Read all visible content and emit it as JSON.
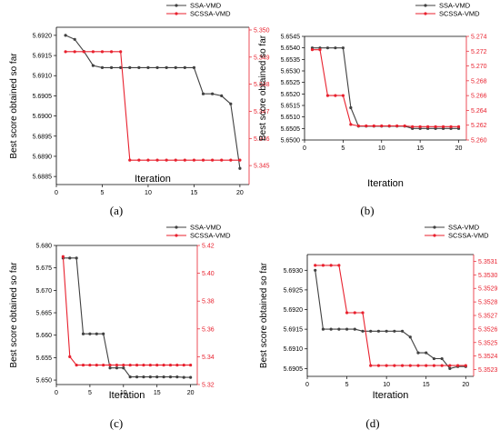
{
  "colors": {
    "ssa": "#404040",
    "scssa": "#e8212e",
    "axis": "#000000"
  },
  "legend": {
    "position": "top-right, above plot area"
  },
  "chart_data": [
    {
      "type": "line",
      "panel_label": "(a)",
      "xlabel": "Iteration",
      "ylabel": "Best score obtained so far",
      "xlim": [
        0,
        21
      ],
      "xticks": [
        0,
        5,
        10,
        15,
        20
      ],
      "ylim_left": [
        5.6883,
        5.6922
      ],
      "yticks_left": [
        5.6885,
        5.689,
        5.6895,
        5.69,
        5.6905,
        5.691,
        5.6915,
        5.692
      ],
      "yticklabels_left": [
        "5.6885",
        "5.6890",
        "5.6895",
        "5.6900",
        "5.6905",
        "5.6910",
        "5.6915",
        "5.6920"
      ],
      "ylim_right": [
        5.3443,
        5.3501
      ],
      "yticks_right": [
        5.345,
        5.346,
        5.347,
        5.348,
        5.349,
        5.35
      ],
      "yticklabels_right": [
        "5.345",
        "5.346",
        "5.347",
        "5.348",
        "5.349",
        "5.350"
      ],
      "series": [
        {
          "name": "SSA-VMD",
          "axis": "left",
          "x": [
            1,
            2,
            3,
            4,
            5,
            6,
            7,
            8,
            9,
            10,
            11,
            12,
            13,
            14,
            15,
            16,
            17,
            18,
            19,
            20
          ],
          "values": [
            5.692,
            5.6919,
            5.6916,
            5.69125,
            5.6912,
            5.6912,
            5.6912,
            5.6912,
            5.6912,
            5.6912,
            5.6912,
            5.6912,
            5.6912,
            5.6912,
            5.6912,
            5.69055,
            5.69055,
            5.6905,
            5.6903,
            5.6887
          ]
        },
        {
          "name": "SCSSA-VMD",
          "axis": "right",
          "x": [
            1,
            2,
            3,
            4,
            5,
            6,
            7,
            8,
            9,
            10,
            11,
            12,
            13,
            14,
            15,
            16,
            17,
            18,
            19,
            20
          ],
          "values": [
            5.3492,
            5.3492,
            5.3492,
            5.3492,
            5.3492,
            5.3492,
            5.3492,
            5.3452,
            5.3452,
            5.3452,
            5.3452,
            5.3452,
            5.3452,
            5.3452,
            5.3452,
            5.3452,
            5.3452,
            5.3452,
            5.3452,
            5.3452
          ]
        }
      ]
    },
    {
      "type": "line",
      "panel_label": "(b)",
      "xlabel": "Iteration",
      "ylabel": "Best score obtained so far",
      "xlim": [
        0,
        21
      ],
      "xticks": [
        0,
        5,
        10,
        15,
        20
      ],
      "ylim_left": [
        5.65,
        5.6545
      ],
      "yticks_left": [
        5.65,
        5.6505,
        5.651,
        5.6515,
        5.652,
        5.6525,
        5.653,
        5.6535,
        5.654,
        5.6545
      ],
      "yticklabels_left": [
        "5.6500",
        "5.6505",
        "5.6510",
        "5.6515",
        "5.6520",
        "5.6525",
        "5.6530",
        "5.6535",
        "5.6540",
        "5.6545"
      ],
      "ylim_right": [
        5.26,
        5.274
      ],
      "yticks_right": [
        5.26,
        5.262,
        5.264,
        5.266,
        5.268,
        5.27,
        5.272,
        5.274
      ],
      "yticklabels_right": [
        "5.260",
        "5.262",
        "5.264",
        "5.266",
        "5.268",
        "5.270",
        "5.272",
        "5.274"
      ],
      "series": [
        {
          "name": "SSA-VMD",
          "axis": "left",
          "x": [
            1,
            2,
            3,
            4,
            5,
            6,
            7,
            8,
            9,
            10,
            11,
            12,
            13,
            14,
            15,
            16,
            17,
            18,
            19,
            20
          ],
          "values": [
            5.654,
            5.654,
            5.654,
            5.654,
            5.654,
            5.6514,
            5.6506,
            5.6506,
            5.6506,
            5.6506,
            5.6506,
            5.6506,
            5.6506,
            5.6505,
            5.6505,
            5.6505,
            5.6505,
            5.6505,
            5.6505,
            5.6505
          ]
        },
        {
          "name": "SCSSA-VMD",
          "axis": "right",
          "x": [
            1,
            2,
            3,
            4,
            5,
            6,
            7,
            8,
            9,
            10,
            11,
            12,
            13,
            14,
            15,
            16,
            17,
            18,
            19,
            20
          ],
          "values": [
            5.2722,
            5.2722,
            5.266,
            5.266,
            5.266,
            5.2621,
            5.2619,
            5.2619,
            5.2619,
            5.2619,
            5.2619,
            5.2619,
            5.2619,
            5.2618,
            5.2618,
            5.2618,
            5.2618,
            5.2618,
            5.2618,
            5.2618
          ]
        }
      ]
    },
    {
      "type": "line",
      "panel_label": "(c)",
      "xlabel": "Iteration",
      "ylabel": "Best score obtained so far",
      "xlim": [
        0,
        21
      ],
      "xticks": [
        0,
        5,
        10,
        15,
        20
      ],
      "ylim_left": [
        5.649,
        5.68
      ],
      "yticks_left": [
        5.65,
        5.655,
        5.66,
        5.665,
        5.67,
        5.675,
        5.68
      ],
      "yticklabels_left": [
        "5.650",
        "5.655",
        "5.660",
        "5.665",
        "5.670",
        "5.675",
        "5.680"
      ],
      "ylim_right": [
        5.32,
        5.42
      ],
      "yticks_right": [
        5.32,
        5.34,
        5.36,
        5.38,
        5.4,
        5.42
      ],
      "yticklabels_right": [
        "5.32",
        "5.34",
        "5.36",
        "5.38",
        "5.40",
        "5.42"
      ],
      "series": [
        {
          "name": "SSA-VMD",
          "axis": "left",
          "x": [
            1,
            2,
            3,
            4,
            5,
            6,
            7,
            8,
            9,
            10,
            11,
            12,
            13,
            14,
            15,
            16,
            17,
            18,
            19,
            20
          ],
          "values": [
            5.6772,
            5.6772,
            5.6772,
            5.6603,
            5.6603,
            5.6603,
            5.6603,
            5.6527,
            5.6527,
            5.6527,
            5.6507,
            5.6507,
            5.6507,
            5.6507,
            5.6507,
            5.6507,
            5.6507,
            5.6507,
            5.6506,
            5.6506
          ]
        },
        {
          "name": "SCSSA-VMD",
          "axis": "right",
          "x": [
            1,
            2,
            3,
            4,
            5,
            6,
            7,
            8,
            9,
            10,
            11,
            12,
            13,
            14,
            15,
            16,
            17,
            18,
            19,
            20
          ],
          "values": [
            5.412,
            5.34,
            5.334,
            5.334,
            5.334,
            5.334,
            5.334,
            5.334,
            5.334,
            5.334,
            5.334,
            5.334,
            5.334,
            5.334,
            5.334,
            5.334,
            5.334,
            5.334,
            5.334,
            5.334
          ]
        }
      ]
    },
    {
      "type": "line",
      "panel_label": "(d)",
      "xlabel": "Iteration",
      "ylabel": "Best score obtained so far",
      "xlim": [
        0,
        21
      ],
      "xticks": [
        0,
        5,
        10,
        15,
        20
      ],
      "ylim_left": [
        5.6903,
        5.6934
      ],
      "yticks_left": [
        5.6905,
        5.691,
        5.6915,
        5.692,
        5.6925,
        5.693
      ],
      "yticklabels_left": [
        "5.6905",
        "5.6910",
        "5.6915",
        "5.6920",
        "5.6925",
        "5.6930"
      ],
      "ylim_right": [
        5.35225,
        5.35315
      ],
      "yticks_right": [
        5.3523,
        5.3524,
        5.3525,
        5.3526,
        5.3527,
        5.3528,
        5.3529,
        5.353,
        5.3531
      ],
      "yticklabels_right": [
        "5.3523",
        "5.3524",
        "5.3525",
        "5.3526",
        "5.3527",
        "5.3528",
        "5.3529",
        "5.3530",
        "5.3531"
      ],
      "series": [
        {
          "name": "SSA-VMD",
          "axis": "left",
          "x": [
            1,
            2,
            3,
            4,
            5,
            6,
            7,
            8,
            9,
            10,
            11,
            12,
            13,
            14,
            15,
            16,
            17,
            18,
            19,
            20
          ],
          "values": [
            5.693,
            5.6915,
            5.6915,
            5.6915,
            5.6915,
            5.6915,
            5.69145,
            5.69145,
            5.69145,
            5.69145,
            5.69145,
            5.69145,
            5.6913,
            5.6909,
            5.6909,
            5.69075,
            5.69075,
            5.6905,
            5.69055,
            5.69055
          ]
        },
        {
          "name": "SCSSA-VMD",
          "axis": "right",
          "x": [
            1,
            2,
            3,
            4,
            5,
            6,
            7,
            8,
            9,
            10,
            11,
            12,
            13,
            14,
            15,
            16,
            17,
            18,
            19,
            20
          ],
          "values": [
            5.35307,
            5.35307,
            5.35307,
            5.35307,
            5.35272,
            5.35272,
            5.35272,
            5.35233,
            5.35233,
            5.35233,
            5.35233,
            5.35233,
            5.35233,
            5.35233,
            5.35233,
            5.35233,
            5.35233,
            5.35233,
            5.35233,
            5.35233
          ]
        }
      ]
    }
  ]
}
